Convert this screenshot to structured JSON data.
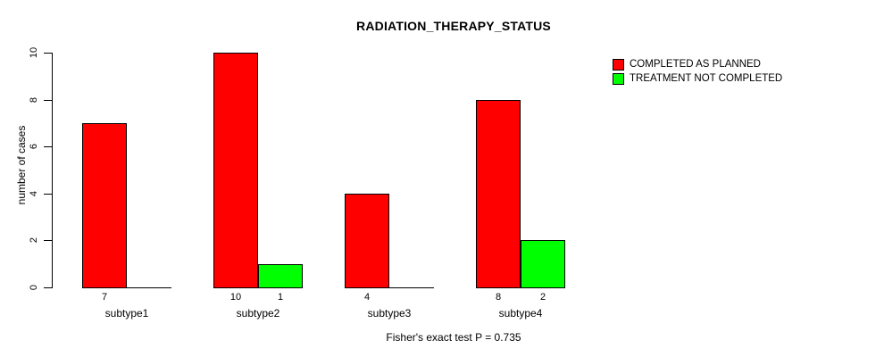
{
  "chart_data": {
    "type": "bar",
    "title": "RADIATION_THERAPY_STATUS",
    "ylabel": "number of cases",
    "xlabel": "",
    "categories": [
      "subtype1",
      "subtype2",
      "subtype3",
      "subtype4"
    ],
    "series": [
      {
        "name": "COMPLETED AS PLANNED",
        "color": "#ff0000",
        "values": [
          7,
          10,
          4,
          8
        ]
      },
      {
        "name": "TREATMENT NOT COMPLETED",
        "color": "#00ff00",
        "values": [
          0,
          1,
          0,
          2
        ]
      }
    ],
    "ylim": [
      0,
      10
    ],
    "yticks": [
      0,
      2,
      4,
      6,
      8,
      10
    ],
    "grid": false,
    "legend_position": "top-right",
    "bar_value_labels_visible_when_nonzero": true,
    "caption": "Fisher's exact test P = 0.735"
  }
}
